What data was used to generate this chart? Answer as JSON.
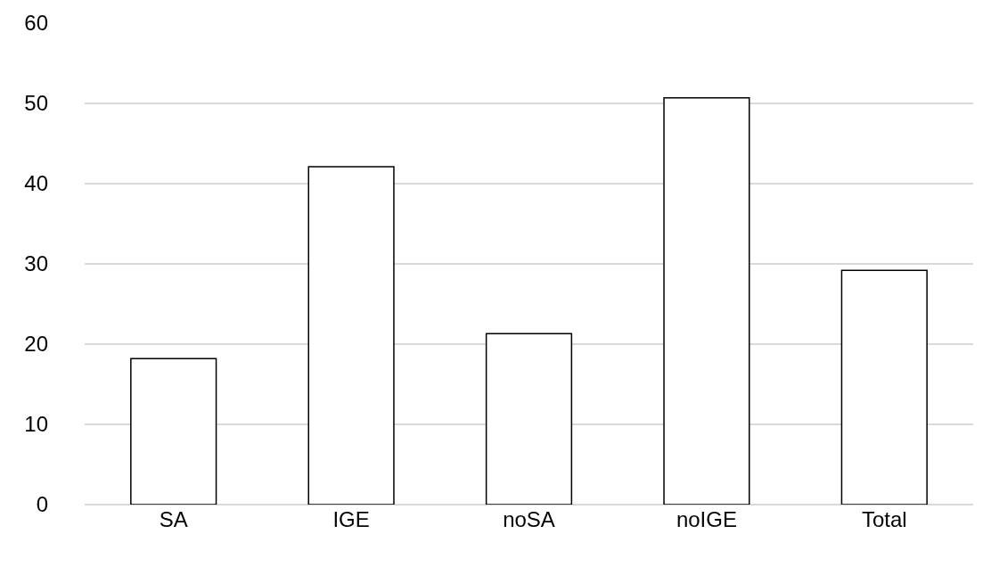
{
  "chart_data": {
    "type": "bar",
    "categories": [
      "SA",
      "IGE",
      "noSA",
      "noIGE",
      "Total"
    ],
    "values": [
      18.2,
      42.1,
      21.3,
      50.7,
      29.2
    ],
    "color": "#ffffff",
    "ylim": [
      0,
      60
    ],
    "yticks": [
      0,
      10,
      20,
      30,
      40,
      50,
      60
    ],
    "grid": "y",
    "legend": false
  }
}
